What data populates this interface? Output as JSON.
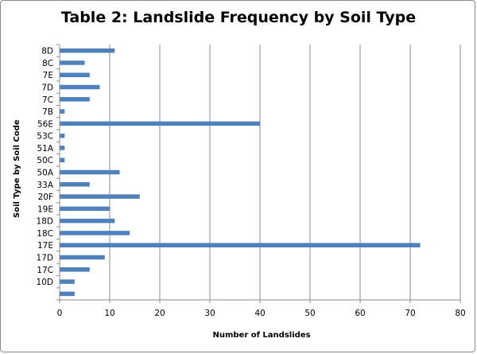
{
  "chart_data": {
    "type": "bar",
    "orientation": "horizontal",
    "title": "Table 2: Landslide Frequency by Soil Type",
    "xlabel": "Number of Landslides",
    "ylabel": "Soil Type by Soil Code",
    "xlim": [
      0,
      80
    ],
    "xticks": [
      0,
      10,
      20,
      30,
      40,
      50,
      60,
      70,
      80
    ],
    "grid": "vertical",
    "legend": "none",
    "bar_color": "#4f81bd",
    "categories": [
      "8D",
      "8C",
      "7E",
      "7D",
      "7C",
      "7B",
      "56E",
      "53C",
      "51A",
      "50C",
      "50A",
      "33A",
      "20F",
      "19E",
      "18D",
      "18C",
      "17E",
      "17D",
      "17C",
      "10D",
      ""
    ],
    "values": [
      11,
      5,
      6,
      8,
      6,
      1,
      40,
      1,
      1,
      1,
      12,
      6,
      16,
      10,
      11,
      14,
      72,
      9,
      6,
      3,
      3
    ]
  }
}
